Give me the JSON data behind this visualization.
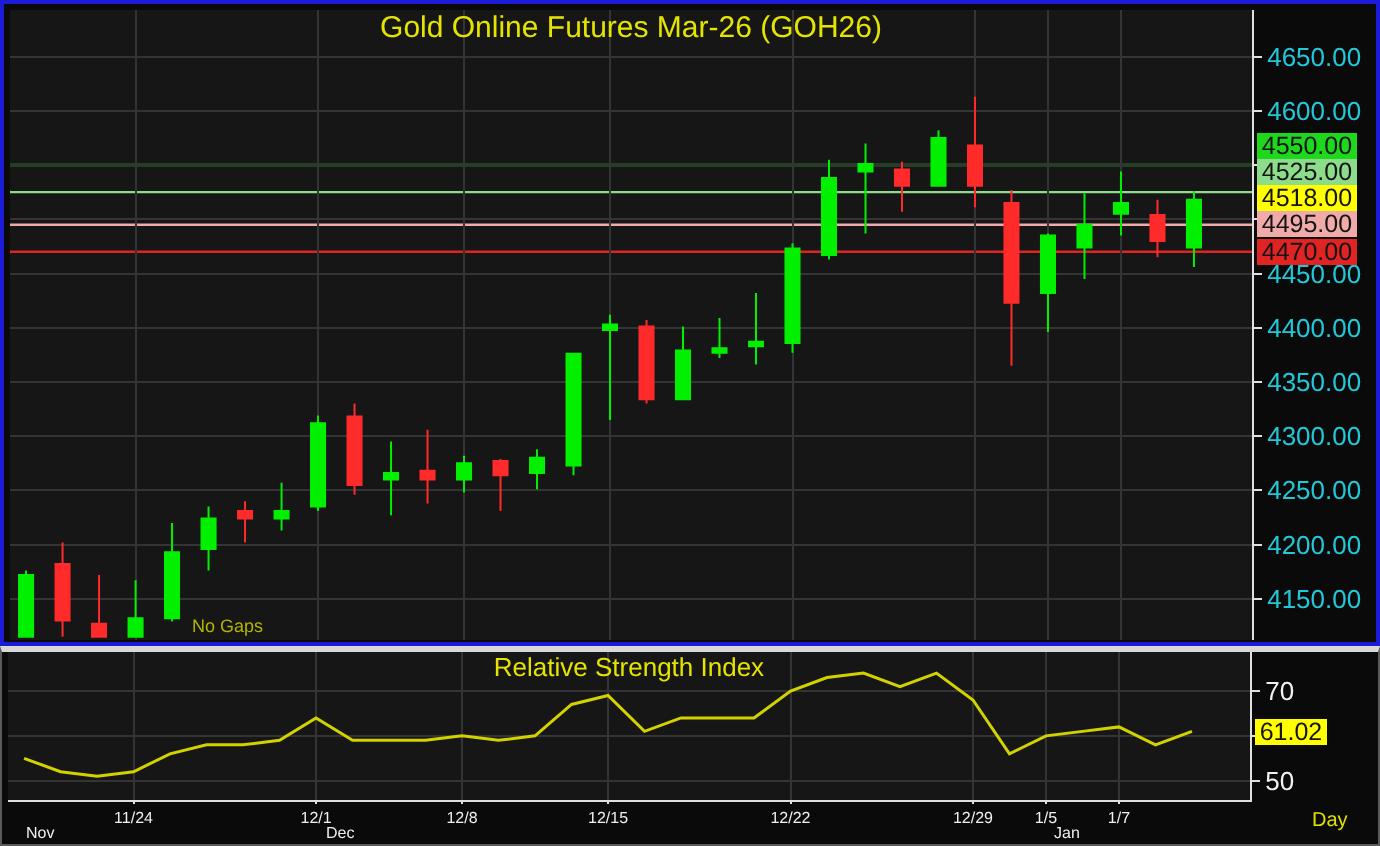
{
  "chart_data": [
    {
      "type": "candlestick",
      "title": "Gold Online Futures Mar-26 (GOH26)",
      "categories": [
        null,
        null,
        null,
        null,
        null,
        null,
        null,
        null,
        null,
        null,
        null,
        null,
        null,
        null,
        null,
        null,
        null,
        null,
        null,
        null,
        null,
        null,
        null,
        null,
        null,
        null,
        null,
        null,
        null,
        null,
        null,
        null,
        null
      ],
      "ohlc": [
        [
          4115,
          4176,
          4115,
          4172
        ],
        [
          4182,
          4202,
          4115,
          4130
        ],
        [
          4127,
          4172,
          4115,
          4115
        ],
        [
          4115,
          4167,
          4115,
          4132
        ],
        [
          4132,
          4220,
          4129,
          4193
        ],
        [
          4196,
          4235,
          4176,
          4224
        ],
        [
          4231,
          4240,
          4202,
          4224
        ],
        [
          4224,
          4257,
          4213,
          4231
        ],
        [
          4235,
          4319,
          4231,
          4312
        ],
        [
          4318,
          4330,
          4246,
          4255
        ],
        [
          4260,
          4295,
          4227,
          4266
        ],
        [
          4268,
          4306,
          4238,
          4260
        ],
        [
          4260,
          4282,
          4248,
          4275
        ],
        [
          4277,
          4279,
          4231,
          4264
        ],
        [
          4266,
          4288,
          4251,
          4280
        ],
        [
          4273,
          4377,
          4264,
          4376
        ],
        [
          4398,
          4412,
          4315,
          4403
        ],
        [
          4401,
          4407,
          4330,
          4334
        ],
        [
          4334,
          4401,
          4334,
          4379
        ],
        [
          4377,
          4409,
          4372,
          4381
        ],
        [
          4383,
          4432,
          4366,
          4387
        ],
        [
          4386,
          4478,
          4377,
          4473
        ],
        [
          4467,
          4555,
          4463,
          4538
        ],
        [
          4544,
          4570,
          4487,
          4551
        ],
        [
          4546,
          4553,
          4507,
          4531
        ],
        [
          4531,
          4582,
          4531,
          4575
        ],
        [
          4568,
          4613,
          4511,
          4531
        ],
        [
          4515,
          4527,
          4365,
          4423
        ],
        [
          4432,
          4487,
          4396,
          4485
        ],
        [
          4474,
          4524,
          4445,
          4495
        ],
        [
          4505,
          4544,
          4485,
          4515
        ],
        [
          4504,
          4518,
          4465,
          4480
        ],
        [
          4474,
          4526,
          4456,
          4518
        ]
      ],
      "colors": [
        "#00f000",
        "#ff2a2a",
        "#ff2a2a",
        "#00f000",
        "#00f000",
        "#00f000",
        "#ff2a2a",
        "#00f000",
        "#00f000",
        "#ff2a2a",
        "#00f000",
        "#ff2a2a",
        "#00f000",
        "#ff2a2a",
        "#00f000",
        "#00f000",
        "#00f000",
        "#ff2a2a",
        "#00f000",
        "#00f000",
        "#00f000",
        "#00f000",
        "#00f000",
        "#00f000",
        "#ff2a2a",
        "#00f000",
        "#ff2a2a",
        "#ff2a2a",
        "#00f000",
        "#00f000",
        "#00f000",
        "#ff2a2a",
        "#00f000"
      ],
      "ylim": [
        4112,
        4693
      ],
      "yticks": [
        {
          "value": 4150,
          "label": "4150.00"
        },
        {
          "value": 4200,
          "label": "4200.00"
        },
        {
          "value": 4250,
          "label": "4250.00"
        },
        {
          "value": 4300,
          "label": "4300.00"
        },
        {
          "value": 4350,
          "label": "4350.00"
        },
        {
          "value": 4400,
          "label": "4400.00"
        },
        {
          "value": 4450,
          "label": "4450.00"
        },
        {
          "value": 4500,
          "label": null
        },
        {
          "value": 4550,
          "label": null
        },
        {
          "value": 4600,
          "label": "4600.00"
        },
        {
          "value": 4650,
          "label": "4650.00"
        }
      ],
      "grid": true,
      "tick_labels": "y",
      "ref_lines": [
        {
          "axis": "y",
          "value": 4550,
          "label": "4550.00",
          "color": "#1ed81e"
        },
        {
          "axis": "y",
          "value": 4525,
          "label": "4525.00",
          "color": "#8cdc8c"
        },
        {
          "axis": "y",
          "value": 4495,
          "label": "4495.00",
          "color": "#f0aaaa"
        },
        {
          "axis": "y",
          "value": 4470,
          "label": "4470.00",
          "color": "#e02424"
        }
      ],
      "annotations": [
        "4518.00",
        "No Gaps"
      ]
    },
    {
      "type": "line",
      "title": "Relative Strength Index",
      "categories": [
        null,
        null,
        null,
        "11/24",
        null,
        null,
        null,
        null,
        "12/1",
        null,
        null,
        null,
        "12/8",
        null,
        null,
        null,
        "12/15",
        null,
        null,
        null,
        null,
        "12/22",
        null,
        null,
        null,
        null,
        "12/29",
        null,
        "1/5",
        null,
        "1/7",
        null,
        null
      ],
      "values": [
        55,
        52,
        51,
        52,
        56,
        58,
        58,
        59,
        64,
        59,
        59,
        59,
        60,
        59,
        60,
        67,
        69,
        61,
        64,
        64,
        64,
        70,
        73,
        74,
        71,
        74,
        68,
        56,
        60,
        61,
        62,
        58,
        61
      ],
      "color": "#d2d200",
      "ylim": [
        45.7,
        78.7
      ],
      "yticks": [
        50,
        {
          "value": 60,
          "label": null
        },
        70
      ],
      "grid": true,
      "annotations": [
        "61.02",
        "Nov",
        "Dec",
        "Jan",
        "Day"
      ]
    }
  ]
}
